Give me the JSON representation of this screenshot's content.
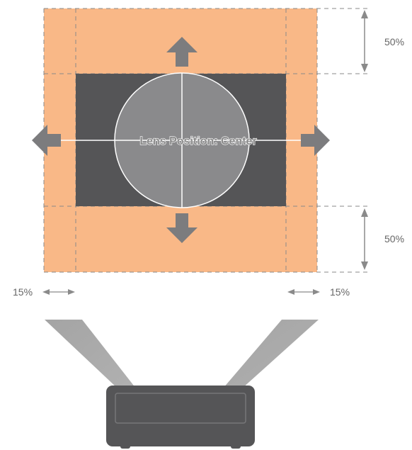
{
  "diagram": {
    "lens_label": "Lens Position: Center",
    "shift": {
      "up_percent": "50%",
      "down_percent": "50%",
      "left_percent": "15%",
      "right_percent": "15%"
    },
    "colors": {
      "shift_area": "#F9B887",
      "dashed_border": "#888888",
      "image_area": "#555557",
      "lens_circle": "#8A8A8C",
      "arrow": "#7C7C7E",
      "dimension_arrow": "#8A8A8A",
      "beam": "#9A9A9A",
      "projector_body": "#555557"
    }
  }
}
